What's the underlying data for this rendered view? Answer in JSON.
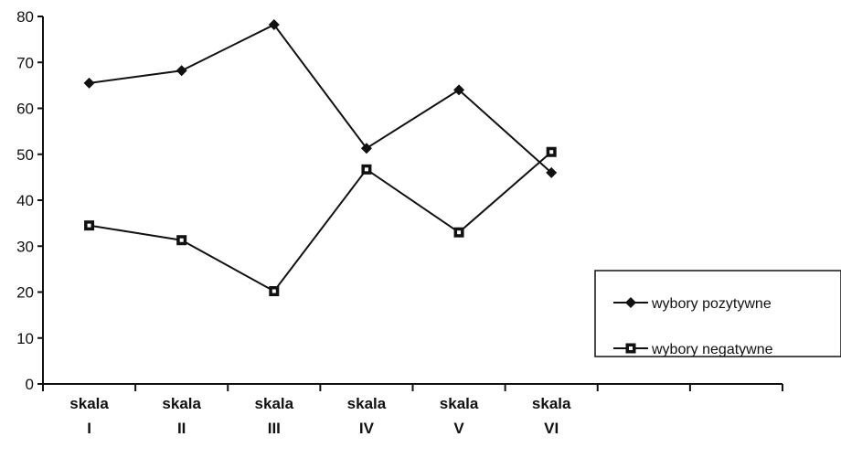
{
  "chart_data": {
    "type": "line",
    "categories": [
      "skala I",
      "skala II",
      "skala III",
      "skala IV",
      "skala V",
      "skala VI"
    ],
    "category_lines": [
      [
        "skala",
        "I"
      ],
      [
        "skala",
        "II"
      ],
      [
        "skala",
        "III"
      ],
      [
        "skala",
        "IV"
      ],
      [
        "skala",
        "V"
      ],
      [
        "skala",
        "VI"
      ]
    ],
    "series": [
      {
        "name": "wybory pozytywne",
        "marker": "diamond",
        "color": "#111111",
        "values": [
          65.5,
          68.2,
          78.2,
          51.3,
          64.0,
          46.0
        ]
      },
      {
        "name": "wybory negatywne",
        "marker": "square",
        "color": "#111111",
        "values": [
          34.5,
          31.3,
          20.2,
          46.7,
          33.0,
          50.5
        ]
      }
    ],
    "ylim": [
      0,
      80
    ],
    "yticks": [
      0,
      10,
      20,
      30,
      40,
      50,
      60,
      70,
      80
    ],
    "empty_slots_after": 2,
    "grid": false,
    "legend_position": "bottom-right"
  }
}
